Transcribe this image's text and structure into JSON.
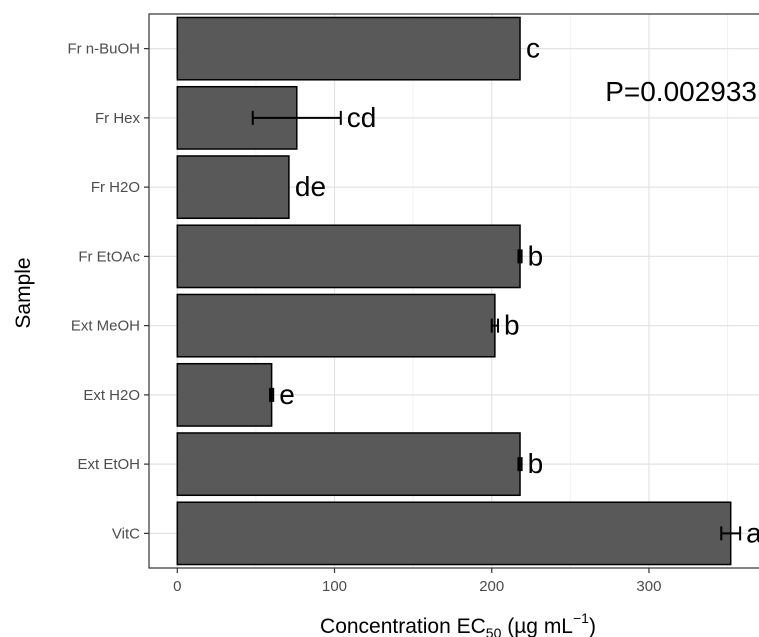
{
  "chart_data": {
    "type": "bar",
    "orientation": "horizontal",
    "categories": [
      "VitC",
      "Ext EtOH",
      "Ext H2O",
      "Ext MeOH",
      "Fr EtOAc",
      "Fr H2O",
      "Fr Hex",
      "Fr n-BuOH"
    ],
    "values": [
      352,
      218,
      60,
      202,
      218,
      71,
      76,
      218
    ],
    "errors": [
      6,
      1,
      1,
      2,
      1,
      0,
      28,
      0
    ],
    "letters": [
      "a",
      "b",
      "e",
      "b",
      "b",
      "de",
      "cd",
      "c"
    ],
    "annotation": "P=0.002933",
    "xlabel_main": "Concentration EC",
    "xlabel_sub": "50",
    "xlabel_units_open": " (µg mL",
    "xlabel_sup": "−1",
    "xlabel_close": ")",
    "ylabel": "Sample",
    "xlim": [
      -18,
      370
    ],
    "xticks": [
      0,
      100,
      200,
      300
    ],
    "grid": true,
    "colors": {
      "bar": "#595959",
      "bar_edge": "#000000",
      "grid_major": "#e3e3e3",
      "grid_minor": "#f2f2f2",
      "panel_border": "#333333"
    }
  }
}
